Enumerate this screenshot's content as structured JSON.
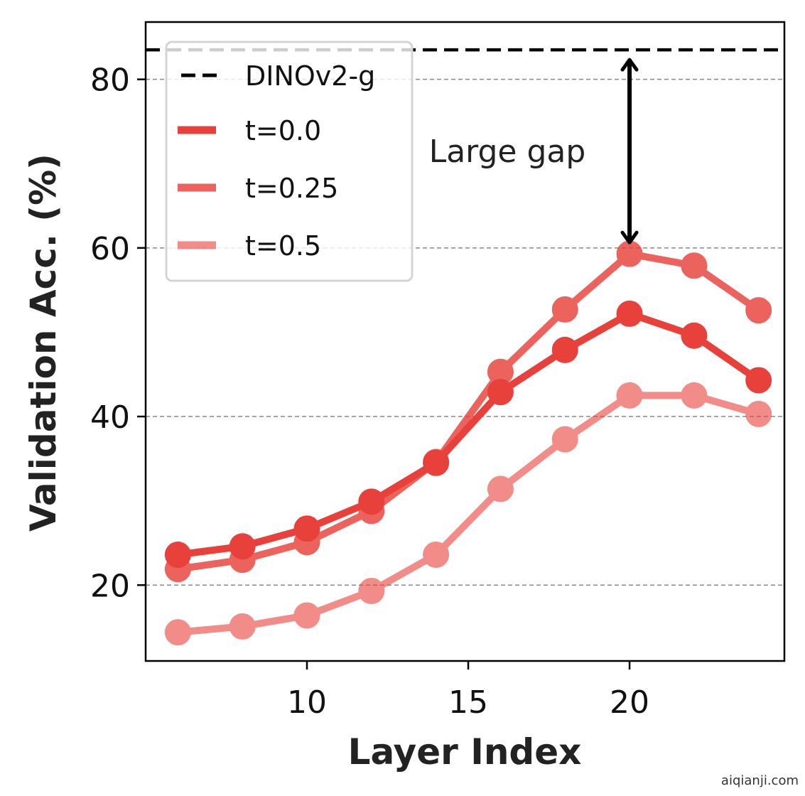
{
  "chart_data": {
    "type": "line",
    "xlabel": "Layer Index",
    "ylabel": "Validation Acc. (%)",
    "xlim": [
      5,
      24.8
    ],
    "ylim": [
      11,
      86.8
    ],
    "xticks": [
      10,
      15,
      20
    ],
    "yticks": [
      20,
      40,
      60,
      80
    ],
    "grid": "horizontal dashed",
    "x": [
      6,
      8,
      10,
      12,
      14,
      16,
      18,
      20,
      22,
      24
    ],
    "baseline": {
      "name": "DINOv2-g",
      "value": 83.5,
      "color": "#000000"
    },
    "series": [
      {
        "name": "t=0.0",
        "color": "#e8403a",
        "opacity": 1.0,
        "values": [
          23.6,
          24.6,
          26.7,
          29.9,
          34.5,
          42.9,
          47.9,
          52.2,
          49.6,
          44.3
        ]
      },
      {
        "name": "t=0.25",
        "color": "#e8403a",
        "opacity": 0.82,
        "values": [
          21.9,
          23.0,
          25.1,
          28.8,
          34.6,
          45.3,
          52.7,
          59.3,
          57.9,
          52.6
        ]
      },
      {
        "name": "t=0.5",
        "color": "#e8403a",
        "opacity": 0.6,
        "values": [
          14.4,
          15.1,
          16.4,
          19.3,
          23.6,
          31.4,
          37.3,
          42.5,
          42.5,
          40.3
        ]
      }
    ],
    "legend": {
      "position": "top-left"
    },
    "annotation": {
      "text": "Large gap",
      "arrow_x": 20,
      "arrow_from": 59.3,
      "arrow_to": 83.5
    }
  },
  "watermark": "aiqianji.com"
}
